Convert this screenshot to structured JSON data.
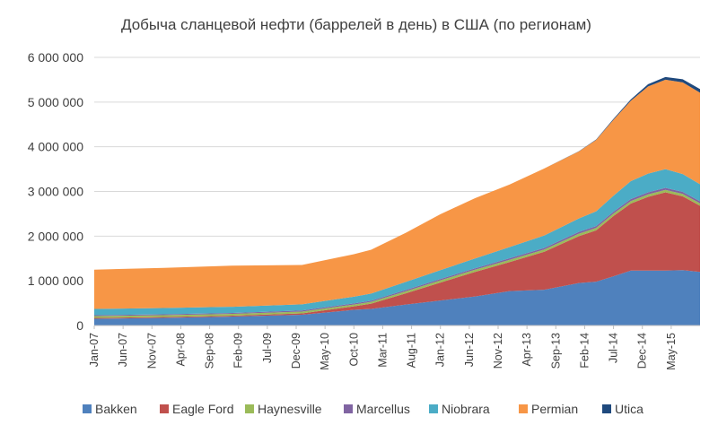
{
  "chart_data": {
    "type": "area",
    "stacked": true,
    "title": "Добыча сланцевой нефти (баррелей в день) в США (по регионам)",
    "xlabel": "",
    "ylabel": "",
    "ylim": [
      0,
      6000000
    ],
    "yticks": [
      0,
      1000000,
      2000000,
      3000000,
      4000000,
      5000000,
      6000000
    ],
    "ytick_labels": [
      "0",
      "1 000 000",
      "2 000 000",
      "3 000 000",
      "4 000 000",
      "5 000 000",
      "6 000 000"
    ],
    "grid": "horizontal",
    "legend": "bottom",
    "x_start": "2007-01",
    "x_labels": [
      "Jan-07",
      "Jun-07",
      "Nov-07",
      "Apr-08",
      "Sep-08",
      "Feb-09",
      "Jul-09",
      "Dec-09",
      "May-10",
      "Oct-10",
      "Mar-11",
      "Aug-11",
      "Jan-12",
      "Jun-12",
      "Nov-12",
      "Apr-13",
      "Sep-13",
      "Feb-14",
      "Jul-14",
      "Dec-14",
      "May-15"
    ],
    "x_label_months": [
      0,
      5,
      10,
      15,
      20,
      25,
      30,
      35,
      40,
      45,
      50,
      55,
      60,
      65,
      70,
      75,
      80,
      85,
      90,
      95,
      100
    ],
    "keypoint_months": [
      0,
      12,
      24,
      36,
      45,
      48,
      54,
      60,
      66,
      72,
      78,
      84,
      87,
      90,
      93,
      96,
      99,
      102,
      105
    ],
    "series": [
      {
        "name": "Bakken",
        "color": "#4F81BD",
        "values": [
          150000,
          170000,
          200000,
          240000,
          350000,
          370000,
          470000,
          560000,
          650000,
          770000,
          800000,
          950000,
          980000,
          1100000,
          1230000,
          1230000,
          1230000,
          1240000,
          1200000
        ]
      },
      {
        "name": "Eagle Ford",
        "color": "#C0504D",
        "values": [
          20000,
          20000,
          20000,
          30000,
          80000,
          120000,
          250000,
          400000,
          550000,
          650000,
          850000,
          1050000,
          1150000,
          1350000,
          1500000,
          1650000,
          1750000,
          1650000,
          1480000
        ]
      },
      {
        "name": "Haynesville",
        "color": "#9BBB59",
        "values": [
          40000,
          40000,
          40000,
          40000,
          40000,
          40000,
          45000,
          50000,
          50000,
          50000,
          50000,
          55000,
          55000,
          55000,
          55000,
          55000,
          55000,
          55000,
          55000
        ]
      },
      {
        "name": "Marcellus",
        "color": "#8064A2",
        "values": [
          20000,
          20000,
          20000,
          25000,
          25000,
          25000,
          30000,
          30000,
          30000,
          35000,
          35000,
          40000,
          40000,
          40000,
          45000,
          45000,
          45000,
          45000,
          45000
        ]
      },
      {
        "name": "Niobrara",
        "color": "#4BACC6",
        "values": [
          140000,
          140000,
          140000,
          140000,
          150000,
          160000,
          180000,
          200000,
          220000,
          250000,
          280000,
          300000,
          330000,
          360000,
          400000,
          420000,
          420000,
          400000,
          380000
        ]
      },
      {
        "name": "Permian",
        "color": "#F79646",
        "values": [
          880000,
          900000,
          920000,
          880000,
          950000,
          980000,
          1100000,
          1250000,
          1350000,
          1400000,
          1500000,
          1500000,
          1600000,
          1700000,
          1800000,
          1950000,
          2000000,
          2050000,
          2050000
        ]
      },
      {
        "name": "Utica",
        "color": "#1F497D",
        "values": [
          0,
          0,
          0,
          0,
          0,
          0,
          0,
          0,
          0,
          0,
          0,
          5000,
          10000,
          20000,
          30000,
          50000,
          60000,
          70000,
          80000
        ]
      }
    ]
  }
}
